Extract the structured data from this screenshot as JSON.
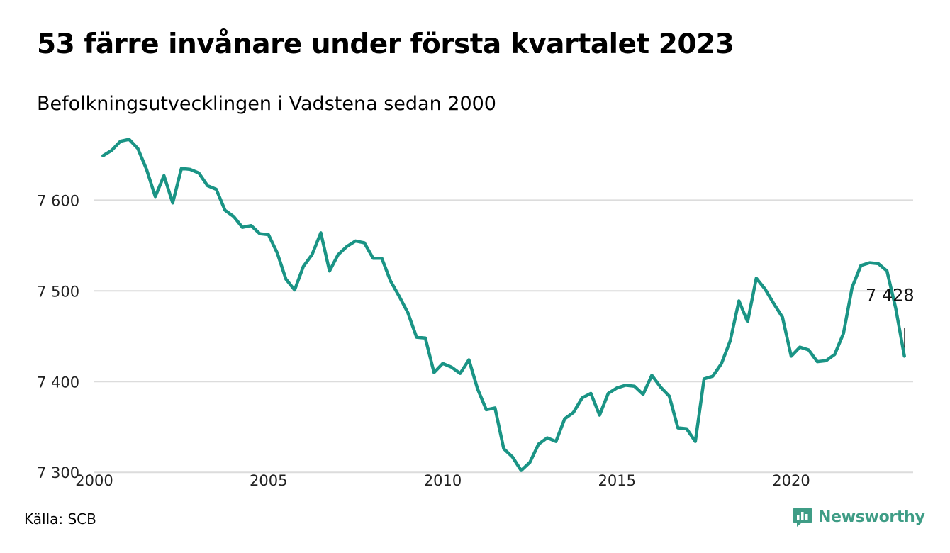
{
  "header": {
    "title": "53 färre invånare under första kvartalet 2023",
    "subtitle": "Befolkningsutvecklingen i Vadstena sedan 2000"
  },
  "footer": {
    "source": "Källa: SCB",
    "brand": "Newsworthy"
  },
  "colors": {
    "line": "#1a9485",
    "grid": "#dcdcdc",
    "brand": "#3f9d86"
  },
  "icons": {
    "brand_logo": "bar-chart-logo-icon"
  },
  "chart_data": {
    "type": "line",
    "title": "53 färre invånare under första kvartalet 2023",
    "subtitle": "Befolkningsutvecklingen i Vadstena sedan 2000",
    "xlabel": "",
    "ylabel": "",
    "xlim": [
      2000.0,
      2023.5
    ],
    "ylim": [
      7290,
      7680
    ],
    "grid": true,
    "legend": "none",
    "x_ticks": [
      {
        "value": 2000,
        "label": "2000"
      },
      {
        "value": 2005,
        "label": "2005"
      },
      {
        "value": 2010,
        "label": "2010"
      },
      {
        "value": 2015,
        "label": "2015"
      },
      {
        "value": 2020,
        "label": "2020"
      }
    ],
    "y_ticks": [
      {
        "value": 7300,
        "label": "7 300"
      },
      {
        "value": 7400,
        "label": "7 400"
      },
      {
        "value": 7500,
        "label": "7 500"
      },
      {
        "value": 7600,
        "label": "7 600"
      }
    ],
    "annotation": {
      "x": 2023.25,
      "y": 7428,
      "label": "7 428"
    },
    "series": [
      {
        "x": [
          2000.25,
          2000.5,
          2000.75,
          2001.0,
          2001.25,
          2001.5,
          2001.75,
          2002.0,
          2002.25,
          2002.5,
          2002.75,
          2003.0,
          2003.25,
          2003.5,
          2003.75,
          2004.0,
          2004.25,
          2004.5,
          2004.75,
          2005.0,
          2005.25,
          2005.5,
          2005.75,
          2006.0,
          2006.25,
          2006.5,
          2006.75,
          2007.0,
          2007.25,
          2007.5,
          2007.75,
          2008.0,
          2008.25,
          2008.5,
          2008.75,
          2009.0,
          2009.25,
          2009.5,
          2009.75,
          2010.0,
          2010.25,
          2010.5,
          2010.75,
          2011.0,
          2011.25,
          2011.5,
          2011.75,
          2012.0,
          2012.25,
          2012.5,
          2012.75,
          2013.0,
          2013.25,
          2013.5,
          2013.75,
          2014.0,
          2014.25,
          2014.5,
          2014.75,
          2015.0,
          2015.25,
          2015.5,
          2015.75,
          2016.0,
          2016.25,
          2016.5,
          2016.75,
          2017.0,
          2017.25,
          2017.5,
          2017.75,
          2018.0,
          2018.25,
          2018.5,
          2018.75,
          2019.0,
          2019.25,
          2019.5,
          2019.75,
          2020.0,
          2020.25,
          2020.5,
          2020.75,
          2021.0,
          2021.25,
          2021.5,
          2021.75,
          2022.0,
          2022.25,
          2022.5,
          2022.75,
          2023.0,
          2023.25
        ],
        "values": [
          7649,
          7655,
          7665,
          7667,
          7657,
          7634,
          7604,
          7627,
          7597,
          7635,
          7634,
          7630,
          7616,
          7612,
          7589,
          7582,
          7570,
          7572,
          7563,
          7562,
          7542,
          7513,
          7501,
          7527,
          7540,
          7564,
          7522,
          7540,
          7549,
          7555,
          7553,
          7536,
          7536,
          7511,
          7494,
          7476,
          7449,
          7448,
          7410,
          7420,
          7416,
          7409,
          7424,
          7392,
          7369,
          7371,
          7326,
          7317,
          7302,
          7311,
          7331,
          7338,
          7334,
          7359,
          7366,
          7382,
          7387,
          7363,
          7387,
          7393,
          7396,
          7395,
          7386,
          7407,
          7394,
          7384,
          7349,
          7348,
          7334,
          7403,
          7406,
          7420,
          7445,
          7489,
          7466,
          7514,
          7502,
          7486,
          7471,
          7428,
          7438,
          7435,
          7422,
          7423,
          7430,
          7453,
          7504,
          7528,
          7531,
          7530,
          7522,
          7481,
          7428
        ]
      }
    ]
  }
}
